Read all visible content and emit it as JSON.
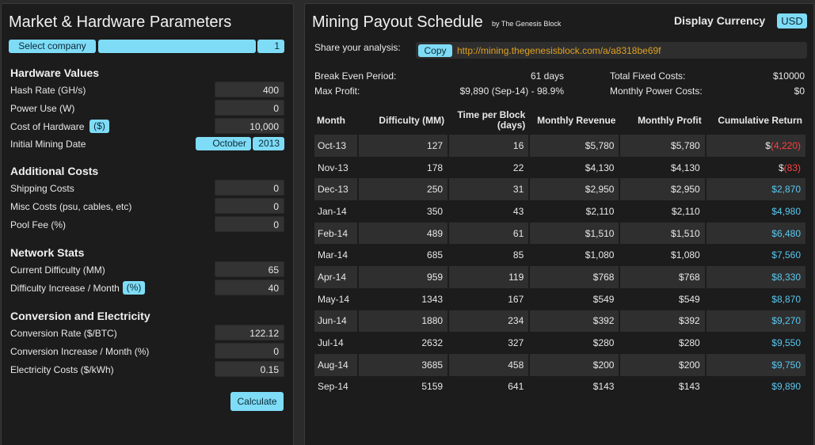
{
  "left": {
    "title": "Market & Hardware Parameters",
    "company_select": "Select company",
    "company_count": "1",
    "sections": {
      "hardware": "Hardware Values",
      "additional": "Additional Costs",
      "network": "Network Stats",
      "conversion": "Conversion and Electricity"
    },
    "fields": {
      "hash_rate": {
        "label": "Hash Rate (GH/s)",
        "value": "400"
      },
      "power_use": {
        "label": "Power Use (W)",
        "value": "0"
      },
      "hardware_cost": {
        "label": "Cost of Hardware",
        "unit": "($)",
        "value": "10,000"
      },
      "mining_date": {
        "label": "Initial Mining Date",
        "month": "October",
        "year": "2013"
      },
      "shipping": {
        "label": "Shipping Costs",
        "value": "0"
      },
      "misc": {
        "label": "Misc Costs (psu, cables, etc)",
        "value": "0"
      },
      "pool_fee": {
        "label": "Pool Fee (%)",
        "value": "0"
      },
      "difficulty": {
        "label": "Current Difficulty (MM)",
        "value": "65"
      },
      "difficulty_increase": {
        "label": "Difficulty Increase / Month",
        "unit": "(%)",
        "value": "40"
      },
      "conversion_rate": {
        "label": "Conversion Rate ($/BTC)",
        "value": "122.12"
      },
      "conversion_increase": {
        "label": "Conversion Increase / Month (%)",
        "value": "0"
      },
      "electricity": {
        "label": "Electricity Costs ($/kWh)",
        "value": "0.15"
      }
    },
    "calculate": "Calculate"
  },
  "right": {
    "title": "Mining Payout Schedule",
    "byline": "by The Genesis Block",
    "currency_label": "Display Currency",
    "currency": "USD",
    "share_label": "Share your analysis:",
    "copy": "Copy",
    "share_url": "http://mining.thegenesisblock.com/a/a8318be69f",
    "summary": {
      "break_even_label": "Break Even Period:",
      "break_even": "61 days",
      "max_profit_label": "Max Profit:",
      "max_profit": "$9,890 (Sep-14) - 98.9%",
      "fixed_costs_label": "Total Fixed Costs:",
      "fixed_costs": "$10000",
      "power_costs_label": "Monthly Power Costs:",
      "power_costs": "$0"
    },
    "table": {
      "headers": [
        "Month",
        "Difficulty (MM)",
        "Time per Block (days)",
        "Monthly Revenue",
        "Monthly Profit",
        "Cumulative Return"
      ],
      "rows": [
        {
          "month": "Oct-13",
          "difficulty": "127",
          "time": "16",
          "revenue": "$5,780",
          "profit": "$5,780",
          "cum_prefix": "$",
          "cum_value": "(4,220)",
          "negative": true
        },
        {
          "month": "Nov-13",
          "difficulty": "178",
          "time": "22",
          "revenue": "$4,130",
          "profit": "$4,130",
          "cum_prefix": "$",
          "cum_value": "(83)",
          "negative": true
        },
        {
          "month": "Dec-13",
          "difficulty": "250",
          "time": "31",
          "revenue": "$2,950",
          "profit": "$2,950",
          "cum_prefix": "",
          "cum_value": "$2,870",
          "negative": false
        },
        {
          "month": "Jan-14",
          "difficulty": "350",
          "time": "43",
          "revenue": "$2,110",
          "profit": "$2,110",
          "cum_prefix": "",
          "cum_value": "$4,980",
          "negative": false
        },
        {
          "month": "Feb-14",
          "difficulty": "489",
          "time": "61",
          "revenue": "$1,510",
          "profit": "$1,510",
          "cum_prefix": "",
          "cum_value": "$6,480",
          "negative": false
        },
        {
          "month": "Mar-14",
          "difficulty": "685",
          "time": "85",
          "revenue": "$1,080",
          "profit": "$1,080",
          "cum_prefix": "",
          "cum_value": "$7,560",
          "negative": false
        },
        {
          "month": "Apr-14",
          "difficulty": "959",
          "time": "119",
          "revenue": "$768",
          "profit": "$768",
          "cum_prefix": "",
          "cum_value": "$8,330",
          "negative": false
        },
        {
          "month": "May-14",
          "difficulty": "1343",
          "time": "167",
          "revenue": "$549",
          "profit": "$549",
          "cum_prefix": "",
          "cum_value": "$8,870",
          "negative": false
        },
        {
          "month": "Jun-14",
          "difficulty": "1880",
          "time": "234",
          "revenue": "$392",
          "profit": "$392",
          "cum_prefix": "",
          "cum_value": "$9,270",
          "negative": false
        },
        {
          "month": "Jul-14",
          "difficulty": "2632",
          "time": "327",
          "revenue": "$280",
          "profit": "$280",
          "cum_prefix": "",
          "cum_value": "$9,550",
          "negative": false
        },
        {
          "month": "Aug-14",
          "difficulty": "3685",
          "time": "458",
          "revenue": "$200",
          "profit": "$200",
          "cum_prefix": "",
          "cum_value": "$9,750",
          "negative": false
        },
        {
          "month": "Sep-14",
          "difficulty": "5159",
          "time": "641",
          "revenue": "$143",
          "profit": "$143",
          "cum_prefix": "",
          "cum_value": "$9,890",
          "negative": false
        }
      ]
    }
  },
  "colors": {
    "accent": "#7fdcf7",
    "link": "#e0a020",
    "negative": "#ff4040",
    "positive": "#59c8f0"
  }
}
